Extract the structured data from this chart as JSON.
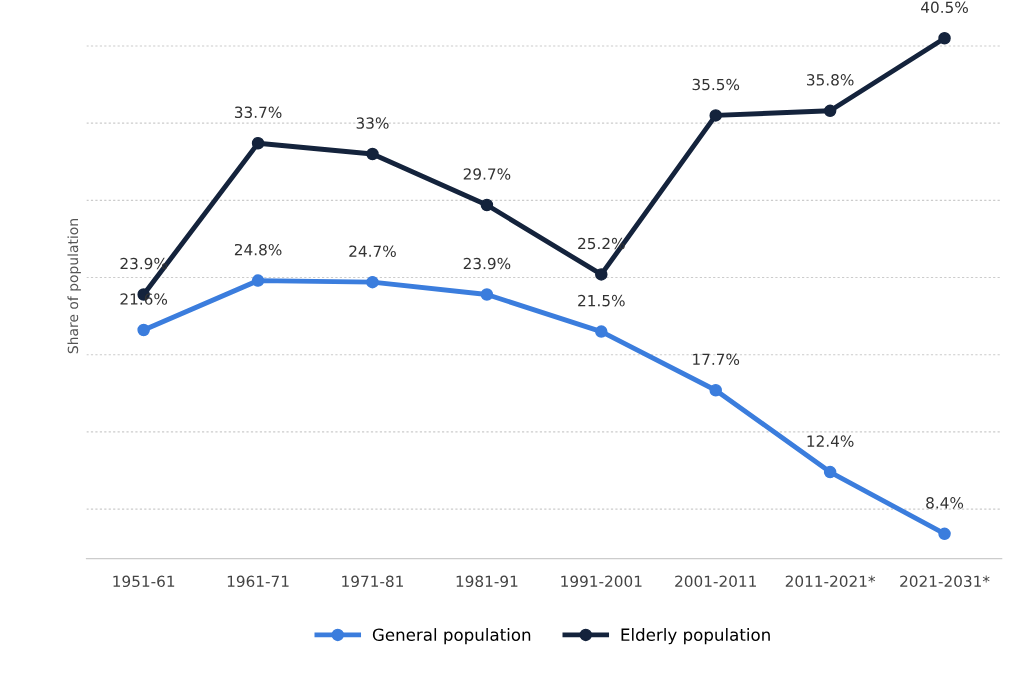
{
  "chart_data": {
    "type": "line",
    "ylabel": "Share of population",
    "categories": [
      "1951-61",
      "1961-71",
      "1971-81",
      "1981-91",
      "1991-2001",
      "2001-2011",
      "2011-2021*",
      "2021-2031*"
    ],
    "series": [
      {
        "name": "General population",
        "color": "#3b7ddd",
        "values": [
          21.6,
          24.8,
          24.7,
          23.9,
          21.5,
          17.7,
          12.4,
          8.4
        ],
        "value_labels": [
          "21.6%",
          "24.8%",
          "24.7%",
          "23.9%",
          "21.5%",
          "17.7%",
          "12.4%",
          "8.4%"
        ]
      },
      {
        "name": "Elderly population",
        "color": "#14233c",
        "values": [
          23.9,
          33.7,
          33,
          29.7,
          25.2,
          35.5,
          35.8,
          40.5
        ],
        "value_labels": [
          "23.9%",
          "33.7%",
          "33%",
          "29.7%",
          "25.2%",
          "35.5%",
          "35.8%",
          "40.5%"
        ]
      }
    ],
    "tick_labels": "x",
    "grid": "y",
    "legend": "bottom",
    "marker": "circle",
    "line_style": "solid"
  }
}
